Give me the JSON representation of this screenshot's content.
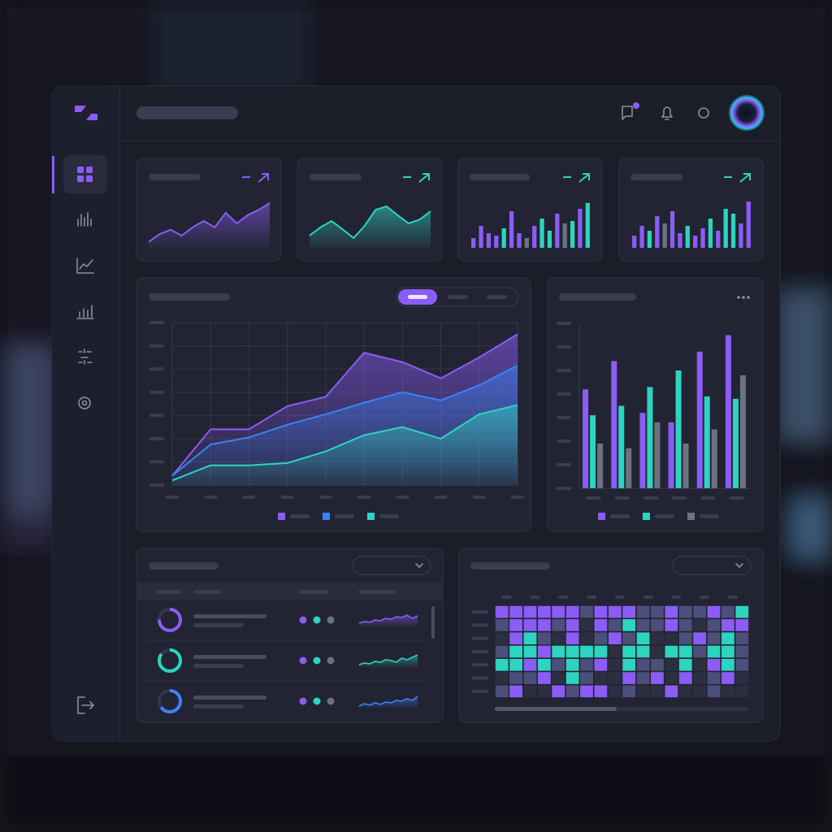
{
  "chart_data": [
    {
      "type": "area",
      "values": [
        12,
        28,
        37,
        25,
        42,
        55,
        42,
        72,
        50,
        67,
        78,
        92
      ],
      "color": "#8b5cf6",
      "ylim": [
        0,
        100
      ]
    },
    {
      "type": "area",
      "values": [
        25,
        42,
        55,
        38,
        20,
        45,
        78,
        85,
        67,
        50,
        58,
        75
      ],
      "color": "#2dd4bf",
      "ylim": [
        0,
        100
      ]
    },
    {
      "type": "bar",
      "values": [
        20,
        45,
        30,
        25,
        40,
        75,
        30,
        20,
        45,
        60,
        35,
        70,
        50,
        55,
        80,
        92
      ],
      "colors": [
        "#8b5cf6",
        "#8b5cf6",
        "#8b5cf6",
        "#8b5cf6",
        "#2dd4bf",
        "#8b5cf6",
        "#8b5cf6",
        "#6b7280",
        "#8b5cf6",
        "#2dd4bf",
        "#2dd4bf",
        "#8b5cf6",
        "#6b7280",
        "#2dd4bf",
        "#8b5cf6",
        "#2dd4bf"
      ],
      "ylim": [
        0,
        100
      ]
    },
    {
      "type": "bar",
      "values": [
        25,
        45,
        35,
        65,
        50,
        75,
        30,
        45,
        25,
        40,
        60,
        35,
        80,
        70,
        50,
        95
      ],
      "colors": [
        "#8b5cf6",
        "#8b5cf6",
        "#2dd4bf",
        "#8b5cf6",
        "#6b7280",
        "#8b5cf6",
        "#8b5cf6",
        "#2dd4bf",
        "#8b5cf6",
        "#8b5cf6",
        "#2dd4bf",
        "#8b5cf6",
        "#2dd4bf",
        "#2dd4bf",
        "#8b5cf6",
        "#8b5cf6"
      ],
      "ylim": [
        0,
        100
      ]
    },
    {
      "type": "area",
      "categories": [
        null,
        null,
        null,
        null,
        null,
        null,
        null,
        null,
        null,
        null
      ],
      "series": [
        {
          "color": "#8b5cf6",
          "values": [
            4,
            24,
            24,
            34,
            38,
            57,
            53,
            46,
            55,
            65
          ]
        },
        {
          "color": "#3b82f6",
          "values": [
            4,
            17.5,
            20.5,
            26,
            30.5,
            35.5,
            40,
            36.5,
            43,
            51.5
          ]
        },
        {
          "color": "#2dd4bf",
          "values": [
            2,
            8.5,
            8.5,
            9.5,
            14.5,
            21.5,
            25,
            20,
            30.5,
            34.5
          ]
        }
      ],
      "ylim": [
        0,
        70
      ],
      "yticks": [
        0,
        10,
        20,
        30,
        40,
        50,
        60,
        70
      ],
      "grid": true,
      "legend": "bottom"
    },
    {
      "type": "bar",
      "categories": [
        null,
        null,
        null,
        null,
        null,
        null
      ],
      "series": [
        {
          "color": "#8b5cf6",
          "values": [
            42,
            54,
            32,
            28,
            58,
            65
          ]
        },
        {
          "color": "#2dd4bf",
          "values": [
            31,
            35,
            43,
            50,
            39,
            38
          ]
        },
        {
          "color": "#6b7280",
          "values": [
            19,
            17,
            28,
            19,
            25,
            48
          ]
        }
      ],
      "ylim": [
        0,
        70
      ],
      "yticks": [
        0,
        10,
        20,
        30,
        40,
        50,
        60,
        70
      ],
      "grid": false,
      "legend": "bottom"
    },
    {
      "type": "heatmap",
      "palette": [
        "#2c2f40",
        "#4b4f7a",
        "#8b5cf6",
        "#2dd4bf"
      ],
      "values": [
        [
          2,
          2,
          2,
          2,
          2,
          2,
          1,
          2,
          2,
          2,
          1,
          1,
          2,
          1,
          1,
          2,
          1,
          3
        ],
        [
          1,
          2,
          2,
          2,
          1,
          2,
          0,
          2,
          1,
          3,
          1,
          1,
          2,
          1,
          0,
          1,
          2,
          2
        ],
        [
          0,
          2,
          3,
          1,
          0,
          2,
          0,
          1,
          2,
          1,
          3,
          0,
          0,
          1,
          2,
          1,
          3,
          1
        ],
        [
          1,
          3,
          3,
          2,
          3,
          3,
          3,
          3,
          0,
          3,
          3,
          0,
          3,
          3,
          1,
          3,
          3,
          1
        ],
        [
          3,
          3,
          2,
          3,
          1,
          3,
          1,
          2,
          0,
          3,
          1,
          1,
          0,
          3,
          0,
          2,
          3,
          1
        ],
        [
          0,
          1,
          1,
          2,
          0,
          3,
          1,
          0,
          0,
          2,
          1,
          2,
          0,
          2,
          0,
          1,
          2,
          0
        ],
        [
          1,
          2,
          0,
          0,
          2,
          1,
          2,
          2,
          0,
          1,
          0,
          0,
          2,
          0,
          0,
          1,
          0,
          0
        ]
      ]
    }
  ],
  "table": {
    "ylim": [
      0,
      100
    ],
    "rows": [
      {
        "progress": 75,
        "color": "#8b5cf6",
        "status_colors": [
          "#8b5cf6",
          "#2dd4bf",
          "#6b7280"
        ],
        "trend": [
          20,
          30,
          25,
          40,
          35,
          50,
          45,
          60,
          55,
          70,
          50,
          65
        ]
      },
      {
        "progress": 85,
        "color": "#2dd4bf",
        "status_colors": [
          "#8b5cf6",
          "#2dd4bf",
          "#6b7280"
        ],
        "trend": [
          15,
          25,
          20,
          35,
          30,
          45,
          40,
          30,
          55,
          45,
          60,
          75
        ]
      },
      {
        "progress": 65,
        "color": "#3b82f6",
        "status_colors": [
          "#8b5cf6",
          "#2dd4bf",
          "#6b7280"
        ],
        "trend": [
          10,
          25,
          15,
          30,
          20,
          35,
          30,
          45,
          40,
          55,
          45,
          70
        ]
      }
    ]
  }
}
